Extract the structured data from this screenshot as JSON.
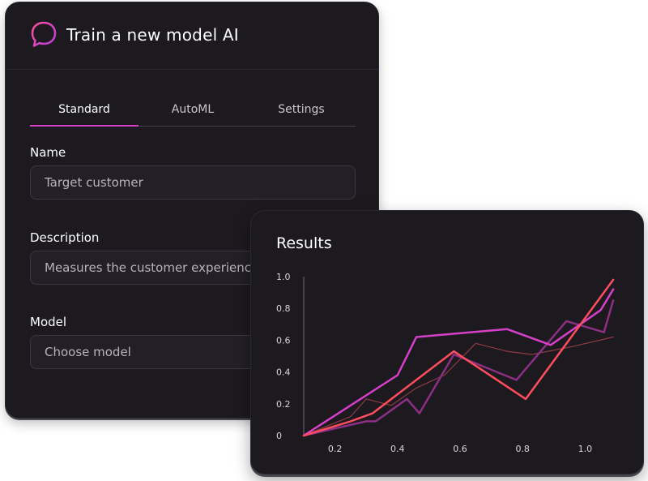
{
  "form": {
    "title": "Train a new model AI",
    "icon": "chat-bubble-icon",
    "accent": "#d63fc8",
    "tabs": [
      {
        "label": "Standard",
        "active": true
      },
      {
        "label": "AutoML",
        "active": false
      },
      {
        "label": "Settings",
        "active": false
      }
    ],
    "name_label": "Name",
    "name_value": "Target customer",
    "description_label": "Description",
    "description_value": "Measures the customer experience",
    "model_label": "Model",
    "model_placeholder": "Choose model"
  },
  "results": {
    "title": "Results"
  },
  "chart_data": {
    "type": "line",
    "title": "Results",
    "xlim": [
      0.1,
      1.1
    ],
    "ylim": [
      0,
      1.0
    ],
    "x_ticks": [
      "0.2",
      "0.4",
      "0.6",
      "0.8",
      "1.0"
    ],
    "y_ticks": [
      "0",
      "0.2",
      "0.4",
      "0.6",
      "0.8",
      "1.0"
    ],
    "grid": false,
    "series": [
      {
        "color": "#d63fc8",
        "width": 2.5,
        "x": [
          0.1,
          0.4,
          0.46,
          0.75,
          0.89,
          1.05,
          1.09
        ],
        "y": [
          0.0,
          0.38,
          0.62,
          0.67,
          0.57,
          0.79,
          0.92
        ]
      },
      {
        "color": "#ff4d5e",
        "width": 2.5,
        "x": [
          0.1,
          0.25,
          0.32,
          0.58,
          0.81,
          1.09
        ],
        "y": [
          0.0,
          0.09,
          0.14,
          0.53,
          0.23,
          0.98
        ]
      },
      {
        "color": "#8c2f85",
        "width": 2.5,
        "x": [
          0.1,
          0.3,
          0.33,
          0.43,
          0.47,
          0.58,
          0.78,
          0.94,
          1.06,
          1.09
        ],
        "y": [
          0.0,
          0.09,
          0.09,
          0.23,
          0.14,
          0.51,
          0.35,
          0.72,
          0.65,
          0.85
        ]
      },
      {
        "color": "#8f3a43",
        "width": 1.2,
        "x": [
          0.1,
          0.25,
          0.3,
          0.38,
          0.46,
          0.55,
          0.65,
          0.75,
          0.83,
          0.96,
          1.09
        ],
        "y": [
          0.0,
          0.12,
          0.23,
          0.19,
          0.3,
          0.38,
          0.58,
          0.53,
          0.51,
          0.56,
          0.62
        ]
      }
    ]
  }
}
